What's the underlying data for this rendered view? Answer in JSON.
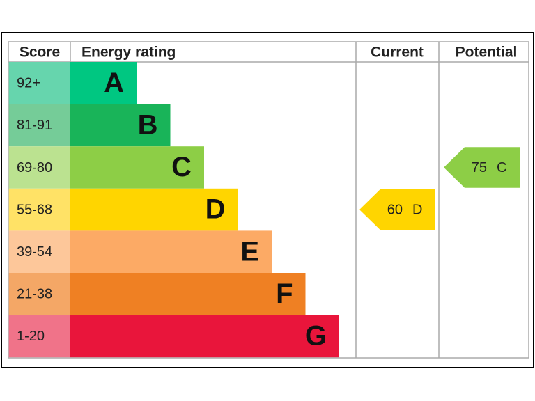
{
  "header": {
    "score": "Score",
    "rating": "Energy rating",
    "current": "Current",
    "potential": "Potential"
  },
  "bands": [
    {
      "score": "92+",
      "letter": "A",
      "color": "#00c781",
      "light": "#66d5ad"
    },
    {
      "score": "81-91",
      "letter": "B",
      "color": "#19b459",
      "light": "#75cc98"
    },
    {
      "score": "69-80",
      "letter": "C",
      "color": "#8dce46",
      "light": "#bbe290"
    },
    {
      "score": "55-68",
      "letter": "D",
      "color": "#ffd500",
      "light": "#ffe266"
    },
    {
      "score": "39-54",
      "letter": "E",
      "color": "#fcaa65",
      "light": "#fdc79a"
    },
    {
      "score": "21-38",
      "letter": "F",
      "color": "#ef8023",
      "light": "#f4a766"
    },
    {
      "score": "1-20",
      "letter": "G",
      "color": "#e9153b",
      "light": "#f07389"
    }
  ],
  "current": {
    "value": 60,
    "letter": "D"
  },
  "potential": {
    "value": 75,
    "letter": "C"
  }
}
